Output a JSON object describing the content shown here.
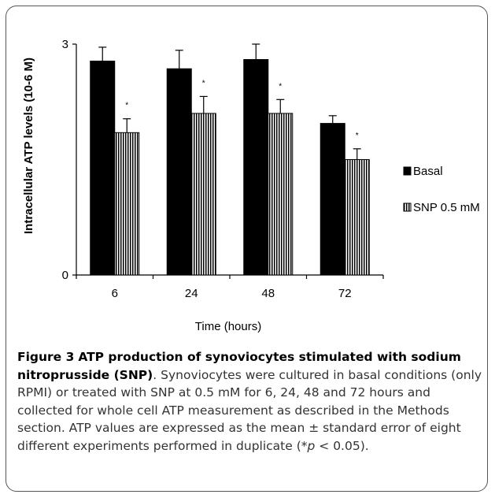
{
  "chart_data": {
    "type": "bar",
    "categories": [
      "6",
      "24",
      "48",
      "72"
    ],
    "series": [
      {
        "name": "Basal",
        "values": [
          2.78,
          2.68,
          2.8,
          1.97
        ],
        "errors": [
          0.18,
          0.24,
          0.2,
          0.1
        ],
        "color": "#000000",
        "pattern": "solid"
      },
      {
        "name": "SNP 0.5 mM",
        "values": [
          1.85,
          2.1,
          2.1,
          1.5
        ],
        "errors": [
          0.18,
          0.22,
          0.18,
          0.14
        ],
        "color": "#000000",
        "pattern": "vertical-stripes"
      }
    ],
    "significance_markers": [
      "*",
      "*",
      "*",
      "*"
    ],
    "xlabel": "Time (hours)",
    "ylabel": "Intracellular ATP levels (10-6 M)",
    "ylim": [
      0,
      3
    ],
    "yticks": [
      "0",
      "3"
    ],
    "grid": false,
    "legend_position": "right"
  },
  "caption": {
    "label": "Figure 3",
    "title": "ATP production of synoviocytes stimulated with sodium nitroprusside (SNP)",
    "body_1": ". Synoviocytes were cultured in basal conditions (only RPMI) or treated with SNP at 0.5 mM for 6, 24, 48 and 72 hours and collected for whole cell ATP measurement as described in the Methods section. ATP values are expressed as the mean ± standard error of eight different experiments performed in duplicate (*",
    "p_symbol": "p",
    "body_2": " < 0.05)."
  }
}
